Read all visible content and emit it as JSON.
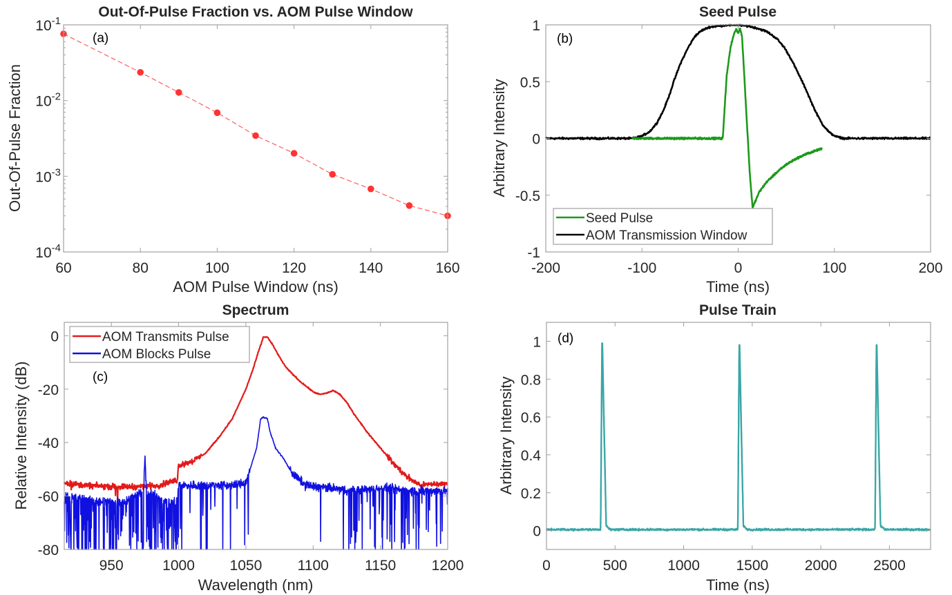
{
  "chart_data": [
    {
      "id": "a",
      "type": "line",
      "title": "Out-Of-Pulse Fraction vs. AOM Pulse Window",
      "xlabel": "AOM Pulse Window (ns)",
      "ylabel": "Out-Of-Pulse Fraction",
      "annotation": "(a)",
      "xlim": [
        60,
        160
      ],
      "ylim": [
        0.0001,
        0.1
      ],
      "yscale": "log",
      "xticks": [
        60,
        80,
        100,
        120,
        140,
        160
      ],
      "yticks": [
        {
          "value": 0.1,
          "base": "10",
          "exp": "-1"
        },
        {
          "value": 0.01,
          "base": "10",
          "exp": "-2"
        },
        {
          "value": 0.001,
          "base": "10",
          "exp": "-3"
        },
        {
          "value": 0.0001,
          "base": "10",
          "exp": "-4"
        }
      ],
      "grid": false,
      "series": [
        {
          "name": "Out-Of-Pulse Fraction",
          "color": "#ff3333",
          "style": "dashed-with-markers",
          "x": [
            60,
            80,
            90,
            100,
            110,
            120,
            130,
            140,
            150,
            160
          ],
          "y": [
            0.076,
            0.0236,
            0.0128,
            0.0069,
            0.00344,
            0.00201,
            0.00106,
            0.00068,
            0.00041,
            0.0003
          ]
        }
      ]
    },
    {
      "id": "b",
      "type": "line",
      "title": "Seed Pulse",
      "xlabel": "Time (ns)",
      "ylabel": "Arbitrary Intensity",
      "annotation": "(b)",
      "xlim": [
        -200,
        200
      ],
      "ylim": [
        -1,
        1
      ],
      "xticks": [
        -200,
        -100,
        0,
        100,
        200
      ],
      "yticks": [
        1,
        0.5,
        0,
        -0.5,
        -1
      ],
      "ytick_labels": [
        "1",
        "0.5",
        "0",
        "-0.5",
        "-1"
      ],
      "grid": false,
      "legend": "bottom-left",
      "series": [
        {
          "name": "Seed Pulse",
          "color": "#1a9a1a",
          "x": [
            -110,
            -20,
            -16,
            -12,
            -8,
            -4,
            -2,
            0,
            2,
            4,
            6,
            8,
            10,
            12,
            15,
            18,
            22,
            30,
            40,
            50,
            60,
            70,
            80,
            87
          ],
          "y": [
            0,
            0,
            0,
            0.55,
            0.8,
            0.93,
            0.96,
            0.93,
            0.97,
            0.9,
            0.6,
            0.3,
            0.0,
            -0.3,
            -0.61,
            -0.55,
            -0.47,
            -0.38,
            -0.3,
            -0.23,
            -0.18,
            -0.14,
            -0.11,
            -0.09
          ]
        },
        {
          "name": "AOM Transmission Window",
          "color": "#000000",
          "x": [
            -200,
            -110,
            -100,
            -92,
            -85,
            -78,
            -72,
            -67,
            -60,
            -52,
            -45,
            -38,
            -30,
            -20,
            -10,
            0,
            10,
            20,
            30,
            40,
            48,
            55,
            62,
            70,
            76,
            82,
            88,
            95,
            102,
            110,
            120,
            200
          ],
          "y": [
            0,
            0,
            0.02,
            0.06,
            0.13,
            0.24,
            0.37,
            0.5,
            0.66,
            0.8,
            0.9,
            0.95,
            0.98,
            0.99,
            1.0,
            1.0,
            0.99,
            0.97,
            0.94,
            0.88,
            0.8,
            0.7,
            0.58,
            0.44,
            0.32,
            0.21,
            0.12,
            0.05,
            0.015,
            0.0,
            0,
            0
          ]
        }
      ]
    },
    {
      "id": "c",
      "type": "line",
      "title": "Spectrum",
      "xlabel": "Wavelength (nm)",
      "ylabel": "Relative Intensity (dB)",
      "annotation": "(c)",
      "xlim": [
        915,
        1200
      ],
      "ylim": [
        -80,
        5
      ],
      "xticks": [
        950,
        1000,
        1050,
        1100,
        1150,
        1200
      ],
      "yticks": [
        0,
        -20,
        -40,
        -60,
        -80
      ],
      "grid": false,
      "legend": "top-left",
      "series": [
        {
          "name": "AOM Transmits Pulse",
          "color": "#e31a1a",
          "x": [
            915,
            930,
            950,
            970,
            985,
            999,
            1000,
            1010,
            1020,
            1030,
            1040,
            1050,
            1055,
            1060,
            1063,
            1066,
            1070,
            1075,
            1080,
            1090,
            1100,
            1105,
            1110,
            1115,
            1120,
            1125,
            1130,
            1140,
            1150,
            1160,
            1170,
            1180,
            1190,
            1200
          ],
          "y": [
            -55,
            -56,
            -56.5,
            -56.5,
            -56,
            -54,
            -48.5,
            -47,
            -44,
            -38,
            -31,
            -20,
            -13,
            -5,
            -0.5,
            -0.5,
            -3.5,
            -8,
            -12,
            -17,
            -21,
            -22,
            -21.5,
            -20.5,
            -22,
            -25,
            -29,
            -36,
            -42,
            -48,
            -53,
            -56,
            -55.5,
            -55.5
          ]
        },
        {
          "name": "AOM Blocks Pulse",
          "color": "#1010e0",
          "x": [
            915,
            940,
            960,
            974,
            975,
            976,
            990,
            999,
            1000,
            1020,
            1040,
            1050,
            1055,
            1058,
            1061,
            1063,
            1066,
            1068,
            1072,
            1078,
            1085,
            1095,
            1110,
            1130,
            1150,
            1170,
            1200
          ],
          "y": [
            -60,
            -62,
            -62,
            -58,
            -44.5,
            -58,
            -62,
            -62,
            -56,
            -56,
            -56,
            -55,
            -47,
            -42,
            -31,
            -30.5,
            -31,
            -36,
            -42,
            -46,
            -52,
            -56,
            -57,
            -58,
            -57,
            -58,
            -58
          ],
          "noise": "dense dropouts to -80 dB below 1000 nm and above 1130 nm"
        }
      ]
    },
    {
      "id": "d",
      "type": "line",
      "title": "Pulse Train",
      "xlabel": "Time (ns)",
      "ylabel": "Arbitrary Intensity",
      "annotation": "(d)",
      "xlim": [
        0,
        2800
      ],
      "ylim": [
        -0.1,
        1.1
      ],
      "xticks": [
        0,
        500,
        1000,
        1500,
        2000,
        2500
      ],
      "yticks": [
        0,
        0.2,
        0.4,
        0.6,
        0.8,
        1
      ],
      "ytick_labels": [
        "0",
        "0.2",
        "0.4",
        "0.6",
        "0.8",
        "1"
      ],
      "grid": false,
      "series": [
        {
          "name": "Pulse Train",
          "color": "#3aa6a6",
          "pulse_centers": [
            405,
            1405,
            2405
          ],
          "pulse_peaks": [
            0.99,
            0.98,
            0.98
          ],
          "baseline": 0.005
        }
      ]
    }
  ]
}
